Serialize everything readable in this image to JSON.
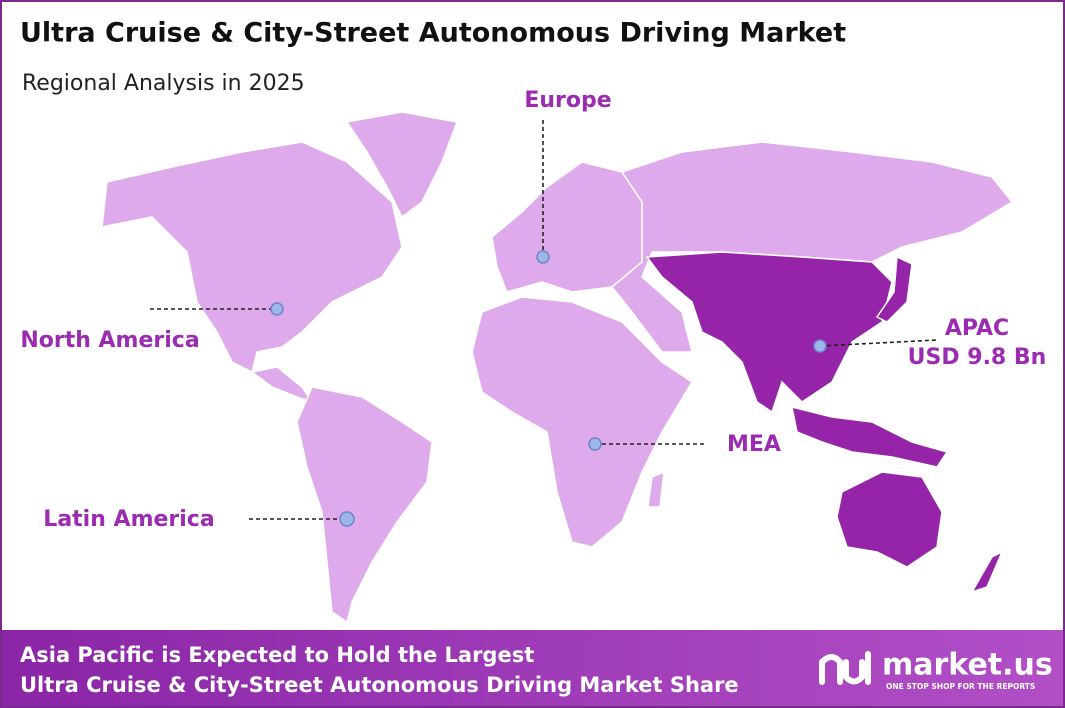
{
  "header": {
    "title": "Ultra Cruise & City-Street Autonomous Driving Market",
    "subtitle": "Regional Analysis in 2025"
  },
  "regions": [
    {
      "label": "North America"
    },
    {
      "label": "Europe"
    },
    {
      "label": "APAC",
      "value": "USD 9.8 Bn"
    },
    {
      "label": "MEA"
    },
    {
      "label": "Latin America"
    }
  ],
  "footer": {
    "lines": [
      "Asia Pacific is Expected to Hold the Largest",
      "Ultra Cruise & City-Street Autonomous Driving Market Share"
    ]
  },
  "logo": {
    "name": "market.us",
    "tagline": "ONE STOP SHOP FOR THE REPORTS"
  }
}
